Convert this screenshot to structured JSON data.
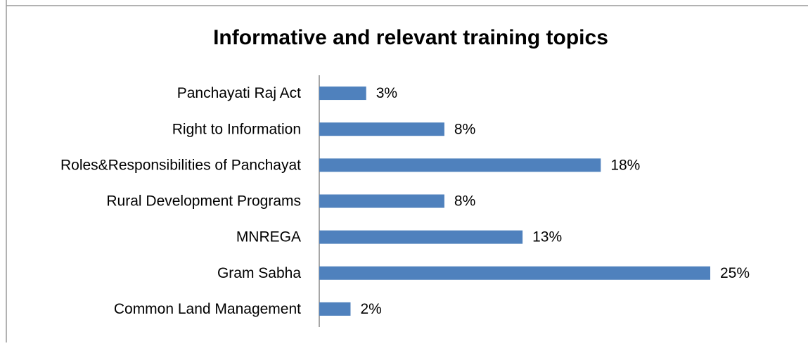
{
  "chart_data": {
    "type": "barh",
    "title": "Informative and relevant training topics",
    "categories": [
      "Panchayati Raj Act",
      "Right to Information",
      "Roles&Responsibilities of Panchayat",
      "Rural Development Programs",
      "MNREGA",
      "Gram Sabha",
      "Common Land Management"
    ],
    "values": [
      3,
      8,
      18,
      8,
      13,
      25,
      2
    ],
    "value_labels": [
      "3%",
      "8%",
      "18%",
      "8%",
      "13%",
      "25%",
      "2%"
    ],
    "color": "#4f81bd"
  }
}
